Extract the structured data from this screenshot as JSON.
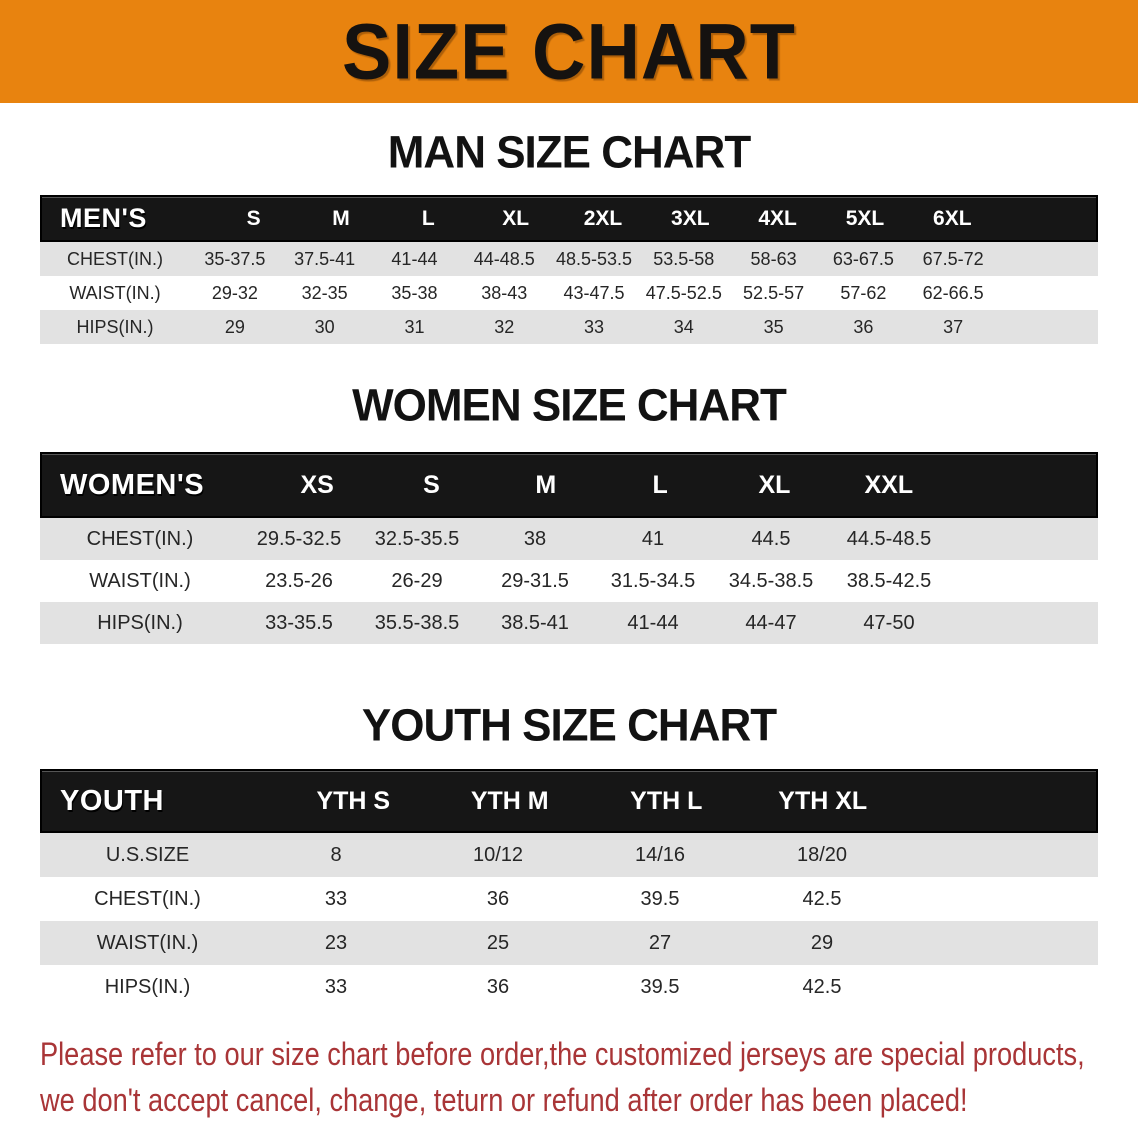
{
  "banner": {
    "title": "SIZE CHART"
  },
  "colors": {
    "banner-bg": "#E8830F",
    "band-bg": "#161616",
    "row-gray": "#E2E2E2",
    "notice-red": "#A93537"
  },
  "men": {
    "heading": "MAN SIZE CHART",
    "corner": "MEN'S",
    "columns": [
      "S",
      "M",
      "L",
      "XL",
      "2XL",
      "3XL",
      "4XL",
      "5XL",
      "6XL"
    ],
    "rows": [
      {
        "label": "CHEST(IN.)",
        "values": [
          "35-37.5",
          "37.5-41",
          "41-44",
          "44-48.5",
          "48.5-53.5",
          "53.5-58",
          "58-63",
          "63-67.5",
          "67.5-72"
        ]
      },
      {
        "label": "WAIST(IN.)",
        "values": [
          "29-32",
          "32-35",
          "35-38",
          "38-43",
          "43-47.5",
          "47.5-52.5",
          "52.5-57",
          "57-62",
          "62-66.5"
        ]
      },
      {
        "label": "HIPS(IN.)",
        "values": [
          "29",
          "30",
          "31",
          "32",
          "33",
          "34",
          "35",
          "36",
          "37"
        ]
      }
    ]
  },
  "women": {
    "heading": "WOMEN SIZE CHART",
    "corner": "WOMEN'S",
    "columns": [
      "XS",
      "S",
      "M",
      "L",
      "XL",
      "XXL"
    ],
    "rows": [
      {
        "label": "CHEST(IN.)",
        "values": [
          "29.5-32.5",
          "32.5-35.5",
          "38",
          "41",
          "44.5",
          "44.5-48.5"
        ]
      },
      {
        "label": "WAIST(IN.)",
        "values": [
          "23.5-26",
          "26-29",
          "29-31.5",
          "31.5-34.5",
          "34.5-38.5",
          "38.5-42.5"
        ]
      },
      {
        "label": "HIPS(IN.)",
        "values": [
          "33-35.5",
          "35.5-38.5",
          "38.5-41",
          "41-44",
          "44-47",
          "47-50"
        ]
      }
    ]
  },
  "youth": {
    "heading": "YOUTH SIZE CHART",
    "corner": "YOUTH",
    "columns": [
      "YTH S",
      "YTH M",
      "YTH L",
      "YTH XL"
    ],
    "rows": [
      {
        "label": "U.S.SIZE",
        "values": [
          "8",
          "10/12",
          "14/16",
          "18/20"
        ]
      },
      {
        "label": "CHEST(IN.)",
        "values": [
          "33",
          "36",
          "39.5",
          "42.5"
        ]
      },
      {
        "label": "WAIST(IN.)",
        "values": [
          "23",
          "25",
          "27",
          "29"
        ]
      },
      {
        "label": "HIPS(IN.)",
        "values": [
          "33",
          "36",
          "39.5",
          "42.5"
        ]
      }
    ]
  },
  "footer": {
    "line1": "Please refer to our size chart before order,the customized jerseys are special products,",
    "line2": "we don't accept cancel, change, teturn or refund after order has been placed!"
  }
}
